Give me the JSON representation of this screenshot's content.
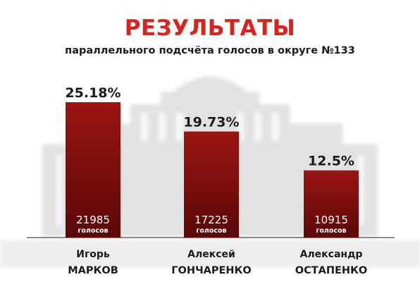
{
  "header": {
    "title": "РЕЗУЛЬТАТЫ",
    "subtitle": "параллельного подсчёта голосов в округе №133"
  },
  "colors": {
    "title": "#d8231f",
    "bar_top": "#9a1512",
    "bar_bottom": "#5a0706",
    "text_dark": "#1b1b1b"
  },
  "chart_data": {
    "type": "bar",
    "categories": [
      {
        "first": "Игорь",
        "last": "МАРКОВ"
      },
      {
        "first": "Алексей",
        "last": "ГОНЧАРЕНКО"
      },
      {
        "first": "Александр",
        "last": "ОСТАПЕНКО"
      }
    ],
    "values": [
      25.18,
      19.73,
      12.5
    ],
    "value_labels": [
      "25.18%",
      "19.73%",
      "12.5%"
    ],
    "votes": [
      21985,
      17225,
      10915
    ],
    "votes_unit": "голосов",
    "ylim": [
      0,
      25.18
    ],
    "grid": false,
    "legend": "none"
  }
}
